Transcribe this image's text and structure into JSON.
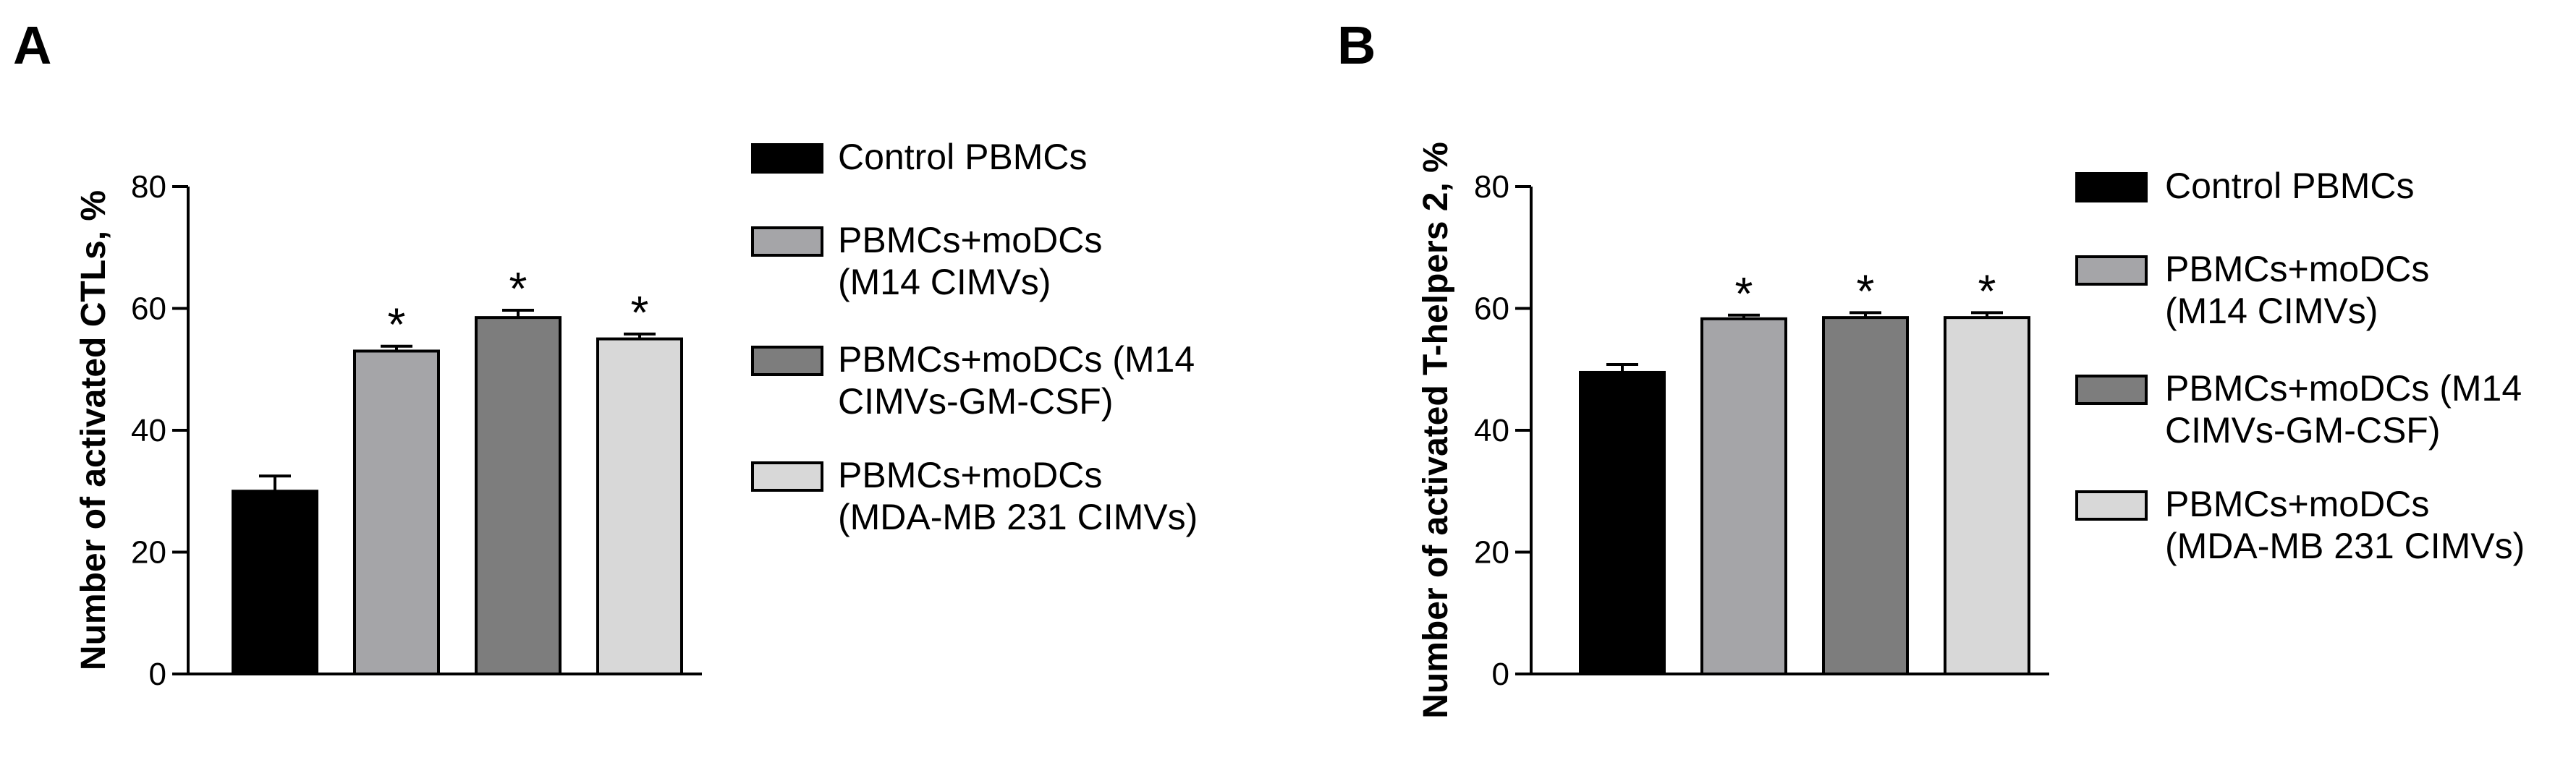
{
  "chart_data": [
    {
      "type": "bar",
      "panel_label": "A",
      "ylabel": "Number of activated CTLs, %",
      "xlabel": "",
      "ylim": [
        0,
        80
      ],
      "yticks": [
        0,
        20,
        40,
        60,
        80
      ],
      "grid": false,
      "legend_position": "right",
      "categories": [
        "Control PBMCs",
        "PBMCs+moDCs (M14 CIMVs)",
        "PBMCs+moDCs (M14 CIMVs-GM-CSF)",
        "PBMCs+moDCs (MDA-MB 231 CIMVs)"
      ],
      "values": [
        30,
        53,
        58.5,
        55
      ],
      "errors": [
        2.5,
        0.8,
        1.2,
        0.8
      ],
      "significance": [
        "",
        "*",
        "*",
        "*"
      ],
      "colors": [
        "#000000",
        "#a5a5a8",
        "#7d7d7d",
        "#d8d8d8"
      ],
      "legend": [
        {
          "lines": [
            "Control PBMCs"
          ]
        },
        {
          "lines": [
            "PBMCs+moDCs",
            "(M14 CIMVs)"
          ]
        },
        {
          "lines": [
            "PBMCs+moDCs (M14",
            "CIMVs-GM-CSF)"
          ]
        },
        {
          "lines": [
            "PBMCs+moDCs",
            "(MDA-MB 231 CIMVs)"
          ]
        }
      ]
    },
    {
      "type": "bar",
      "panel_label": "B",
      "ylabel": "Number of activated T-helpers 2, %",
      "xlabel": "",
      "ylim": [
        0,
        80
      ],
      "yticks": [
        0,
        20,
        40,
        60,
        80
      ],
      "grid": false,
      "legend_position": "right",
      "categories": [
        "Control PBMCs",
        "PBMCs+moDCs (M14 CIMVs)",
        "PBMCs+moDCs (M14 CIMVs-GM-CSF)",
        "PBMCs+moDCs (MDA-MB 231 CIMVs)"
      ],
      "values": [
        49.5,
        58.3,
        58.5,
        58.5
      ],
      "errors": [
        1.3,
        0.6,
        0.8,
        0.8
      ],
      "significance": [
        "",
        "*",
        "*",
        "*"
      ],
      "colors": [
        "#000000",
        "#a5a5a8",
        "#7d7d7d",
        "#d8d8d8"
      ],
      "legend": [
        {
          "lines": [
            "Control PBMCs"
          ]
        },
        {
          "lines": [
            "PBMCs+moDCs",
            "(M14 CIMVs)"
          ]
        },
        {
          "lines": [
            "PBMCs+moDCs (M14",
            "CIMVs-GM-CSF)"
          ]
        },
        {
          "lines": [
            "PBMCs+moDCs",
            "(MDA-MB 231 CIMVs)"
          ]
        }
      ]
    }
  ]
}
